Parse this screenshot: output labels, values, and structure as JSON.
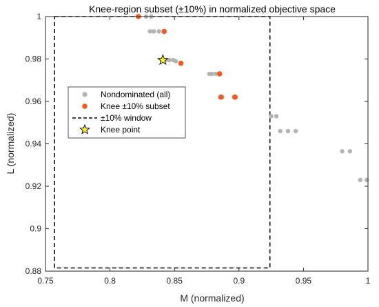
{
  "chart_data": {
    "type": "scatter",
    "title": "Knee-region subset (±10%) in normalized objective space",
    "xlabel": "M (normalized)",
    "ylabel": "L (normalized)",
    "xlim": [
      0.75,
      1.0
    ],
    "ylim": [
      0.88,
      1.0
    ],
    "xticks": [
      "0.75",
      "0.8",
      "0.85",
      "0.9",
      "0.95",
      "1"
    ],
    "yticks": [
      "0.88",
      "0.9",
      "0.92",
      "0.94",
      "0.96",
      "0.98",
      "1"
    ],
    "grid": false,
    "legend_position": "middle-left",
    "colors": {
      "nondominated": "#b3b3b3",
      "subset": "#f05a1e",
      "window": "#000000",
      "knee": "#ffee33"
    },
    "series": [
      {
        "name": "Nondominated (all)",
        "marker": "dot",
        "points": [
          [
            0.822,
            1.0
          ],
          [
            0.828,
            1.0
          ],
          [
            0.832,
            1.0
          ],
          [
            0.831,
            0.993
          ],
          [
            0.834,
            0.993
          ],
          [
            0.838,
            0.993
          ],
          [
            0.843,
            0.9795
          ],
          [
            0.846,
            0.9795
          ],
          [
            0.849,
            0.9795
          ],
          [
            0.851,
            0.979
          ],
          [
            0.877,
            0.973
          ],
          [
            0.879,
            0.973
          ],
          [
            0.882,
            0.973
          ],
          [
            0.887,
            0.962
          ],
          [
            0.896,
            0.962
          ],
          [
            0.925,
            0.953
          ],
          [
            0.929,
            0.953
          ],
          [
            0.932,
            0.946
          ],
          [
            0.938,
            0.946
          ],
          [
            0.944,
            0.946
          ],
          [
            0.98,
            0.9365
          ],
          [
            0.986,
            0.9365
          ],
          [
            0.994,
            0.923
          ],
          [
            0.999,
            0.923
          ]
        ]
      },
      {
        "name": "Knee ±10% subset",
        "marker": "dot",
        "points": [
          [
            0.822,
            1.0
          ],
          [
            0.842,
            0.993
          ],
          [
            0.855,
            0.978
          ],
          [
            0.885,
            0.973
          ],
          [
            0.886,
            0.962
          ],
          [
            0.897,
            0.962
          ]
        ]
      },
      {
        "name": "±10% window",
        "marker": "dashed-rect",
        "rect": {
          "x0": 0.757,
          "x1": 0.924,
          "y0": 0.8815,
          "y1": 1.0
        }
      },
      {
        "name": "Knee point",
        "marker": "star",
        "points": [
          [
            0.841,
            0.9795
          ]
        ]
      }
    ]
  }
}
